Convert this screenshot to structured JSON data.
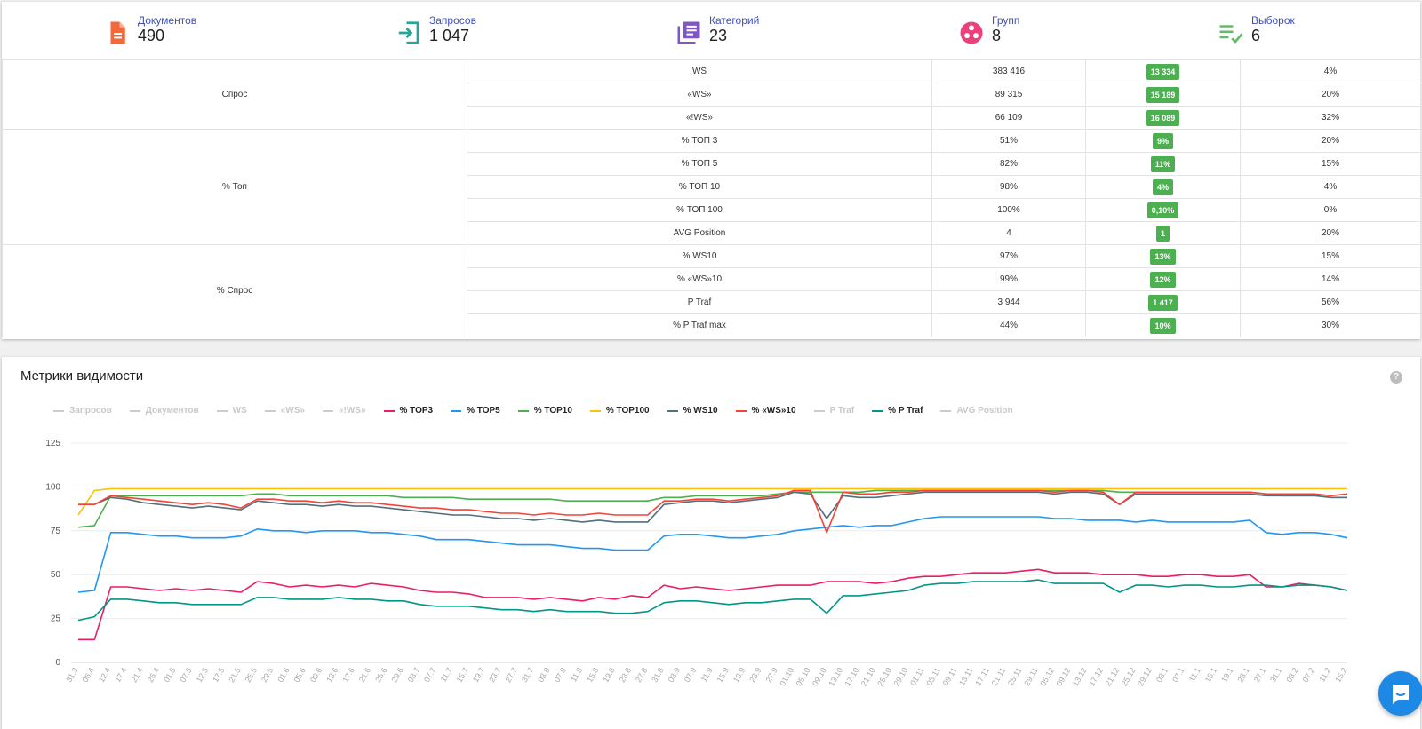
{
  "stats": [
    {
      "label": "Документов",
      "value": "490",
      "icon": "document-icon",
      "color": "#f4693c"
    },
    {
      "label": "Запросов",
      "value": "1 047",
      "icon": "login-arrow-icon",
      "color": "#26a69a"
    },
    {
      "label": "Категорий",
      "value": "23",
      "icon": "library-icon",
      "color": "#7e57c2"
    },
    {
      "label": "Групп",
      "value": "8",
      "icon": "group-circles-icon",
      "color": "#ec407a"
    },
    {
      "label": "Выборок",
      "value": "6",
      "icon": "checklist-icon",
      "color": "#66bb6a"
    }
  ],
  "table": {
    "groups": [
      {
        "name": "Спрос",
        "rows": [
          {
            "metric": "WS",
            "value": "383 416",
            "delta": "13 334",
            "pct": "4%"
          },
          {
            "metric": "«WS»",
            "value": "89 315",
            "delta": "15 189",
            "pct": "20%"
          },
          {
            "metric": "«!WS»",
            "value": "66 109",
            "delta": "16 089",
            "pct": "32%"
          }
        ]
      },
      {
        "name": "% Топ",
        "rows": [
          {
            "metric": "% ТОП 3",
            "value": "51%",
            "delta": "9%",
            "pct": "20%"
          },
          {
            "metric": "% ТОП 5",
            "value": "82%",
            "delta": "11%",
            "pct": "15%"
          },
          {
            "metric": "% ТОП 10",
            "value": "98%",
            "delta": "4%",
            "pct": "4%"
          },
          {
            "metric": "% ТОП 100",
            "value": "100%",
            "delta": "0,10%",
            "pct": "0%"
          },
          {
            "metric": "AVG Position",
            "value": "4",
            "delta": "1",
            "pct": "20%"
          }
        ]
      },
      {
        "name": "% Спрос",
        "rows": [
          {
            "metric": "% WS10",
            "value": "97%",
            "delta": "13%",
            "pct": "15%"
          },
          {
            "metric": "% «WS»10",
            "value": "99%",
            "delta": "12%",
            "pct": "14%"
          },
          {
            "metric": "P Traf",
            "value": "3 944",
            "delta": "1 417",
            "pct": "56%"
          },
          {
            "metric": "% P Traf max",
            "value": "44%",
            "delta": "10%",
            "pct": "30%"
          }
        ]
      }
    ]
  },
  "chart": {
    "title": "Метрики видимости",
    "help": "?",
    "legend": [
      {
        "name": "Запросов",
        "color": "#cccccc",
        "active": false
      },
      {
        "name": "Документов",
        "color": "#cccccc",
        "active": false
      },
      {
        "name": "WS",
        "color": "#cccccc",
        "active": false
      },
      {
        "name": "«WS»",
        "color": "#cccccc",
        "active": false
      },
      {
        "name": "«!WS»",
        "color": "#cccccc",
        "active": false
      },
      {
        "name": "% TOP3",
        "color": "#e91e63",
        "active": true
      },
      {
        "name": "% TOP5",
        "color": "#2196f3",
        "active": true
      },
      {
        "name": "% TOP10",
        "color": "#4caf50",
        "active": true
      },
      {
        "name": "% TOP100",
        "color": "#ffc107",
        "active": true
      },
      {
        "name": "% WS10",
        "color": "#546e7a",
        "active": true
      },
      {
        "name": "% «WS»10",
        "color": "#f44336",
        "active": true
      },
      {
        "name": "P Traf",
        "color": "#cccccc",
        "active": false
      },
      {
        "name": "% P Traf",
        "color": "#009688",
        "active": true
      },
      {
        "name": "AVG Position",
        "color": "#cccccc",
        "active": false
      }
    ]
  },
  "chart_data": {
    "type": "line",
    "yticks": [
      0,
      25,
      50,
      75,
      100,
      125
    ],
    "ylim": [
      0,
      125
    ],
    "grid": true,
    "legend_position": "top",
    "x": [
      "31.3",
      "06.4",
      "12.4",
      "17.4",
      "21.4",
      "26.4",
      "01.5",
      "07.5",
      "12.5",
      "17.5",
      "21.5",
      "25.5",
      "29.5",
      "01.6",
      "05.6",
      "09.6",
      "13.6",
      "17.6",
      "21.6",
      "25.6",
      "29.6",
      "03.7",
      "07.7",
      "11.7",
      "15.7",
      "19.7",
      "23.7",
      "27.7",
      "31.7",
      "03.8",
      "07.8",
      "11.8",
      "15.8",
      "19.8",
      "23.8",
      "27.8",
      "31.8",
      "03.9",
      "07.9",
      "11.9",
      "15.9",
      "19.9",
      "23.9",
      "27.9",
      "01.10",
      "05.10",
      "09.10",
      "13.10",
      "17.10",
      "21.10",
      "25.10",
      "29.10",
      "01.11",
      "05.11",
      "09.11",
      "13.11",
      "17.11",
      "21.11",
      "25.11",
      "29.11",
      "05.12",
      "09.12",
      "13.12",
      "17.12",
      "21.12",
      "25.12",
      "29.12",
      "03.1",
      "07.1",
      "11.1",
      "15.1",
      "19.1",
      "23.1",
      "27.1",
      "31.1",
      "03.2",
      "07.2",
      "11.2",
      "15.2"
    ],
    "series": [
      {
        "name": "% TOP3",
        "color": "#e91e63",
        "values": [
          13,
          13,
          43,
          43,
          42,
          41,
          42,
          41,
          42,
          41,
          40,
          46,
          45,
          43,
          44,
          43,
          44,
          43,
          45,
          44,
          43,
          41,
          40,
          40,
          39,
          37,
          37,
          37,
          36,
          37,
          36,
          35,
          37,
          36,
          38,
          37,
          44,
          42,
          43,
          42,
          41,
          42,
          43,
          44,
          44,
          44,
          46,
          46,
          46,
          45,
          46,
          48,
          49,
          49,
          50,
          51,
          51,
          51,
          52,
          53,
          51,
          51,
          51,
          50,
          50,
          50,
          49,
          49,
          50,
          50,
          49,
          49,
          50,
          43,
          43,
          45,
          44,
          43,
          41
        ]
      },
      {
        "name": "% TOP5",
        "color": "#2196f3",
        "values": [
          40,
          41,
          74,
          74,
          73,
          72,
          72,
          71,
          71,
          71,
          72,
          76,
          75,
          75,
          74,
          75,
          75,
          75,
          74,
          74,
          73,
          72,
          70,
          70,
          70,
          69,
          68,
          67,
          67,
          67,
          66,
          65,
          65,
          64,
          64,
          64,
          72,
          73,
          73,
          72,
          71,
          71,
          72,
          73,
          75,
          76,
          77,
          78,
          77,
          78,
          78,
          80,
          82,
          83,
          83,
          83,
          83,
          83,
          83,
          83,
          82,
          82,
          81,
          81,
          81,
          80,
          81,
          80,
          80,
          80,
          80,
          80,
          81,
          74,
          73,
          74,
          74,
          73,
          71
        ]
      },
      {
        "name": "% TOP10",
        "color": "#4caf50",
        "values": [
          77,
          78,
          95,
          95,
          95,
          95,
          95,
          95,
          95,
          95,
          95,
          96,
          96,
          95,
          95,
          95,
          95,
          95,
          95,
          95,
          94,
          94,
          94,
          94,
          93,
          93,
          93,
          93,
          93,
          93,
          92,
          92,
          92,
          92,
          92,
          92,
          94,
          94,
          95,
          95,
          95,
          95,
          95,
          96,
          97,
          97,
          97,
          97,
          97,
          98,
          98,
          98,
          98,
          98,
          98,
          98,
          98,
          98,
          98,
          98,
          98,
          98,
          98,
          98,
          97,
          97,
          97,
          97,
          97,
          97,
          97,
          97,
          97,
          96,
          95,
          95,
          95,
          94,
          94
        ]
      },
      {
        "name": "% TOP100",
        "color": "#ffc107",
        "values": [
          84,
          98,
          99,
          99,
          99,
          99,
          99,
          99,
          99,
          99,
          99,
          99,
          99,
          99,
          99,
          99,
          99,
          99,
          99,
          99,
          99,
          99,
          99,
          99,
          99,
          99,
          99,
          99,
          99,
          99,
          99,
          99,
          99,
          99,
          99,
          99,
          99,
          99,
          99,
          99,
          99,
          99,
          99,
          99,
          99,
          99,
          99,
          99,
          99,
          99,
          99,
          99,
          99,
          99,
          99,
          99,
          99,
          99,
          99,
          99,
          99,
          99,
          99,
          99,
          99,
          99,
          99,
          99,
          99,
          99,
          99,
          99,
          99,
          99,
          99,
          99,
          99,
          99,
          99
        ]
      },
      {
        "name": "% WS10",
        "color": "#546e7a",
        "values": [
          90,
          90,
          94,
          93,
          91,
          90,
          89,
          88,
          89,
          88,
          87,
          92,
          91,
          90,
          90,
          89,
          90,
          89,
          89,
          88,
          87,
          86,
          85,
          84,
          84,
          83,
          82,
          82,
          81,
          82,
          81,
          80,
          81,
          80,
          80,
          80,
          90,
          91,
          92,
          92,
          91,
          92,
          93,
          94,
          97,
          96,
          82,
          95,
          94,
          94,
          95,
          96,
          97,
          97,
          97,
          97,
          97,
          97,
          97,
          97,
          96,
          97,
          97,
          96,
          90,
          96,
          96,
          96,
          96,
          96,
          96,
          96,
          96,
          95,
          95,
          95,
          95,
          94,
          94
        ]
      },
      {
        "name": "% «WS»10",
        "color": "#f44336",
        "values": [
          90,
          90,
          95,
          94,
          93,
          92,
          91,
          90,
          91,
          90,
          88,
          93,
          93,
          92,
          92,
          91,
          92,
          91,
          91,
          90,
          89,
          88,
          88,
          87,
          87,
          86,
          85,
          85,
          84,
          85,
          84,
          84,
          85,
          84,
          84,
          84,
          92,
          92,
          93,
          93,
          92,
          93,
          94,
          95,
          98,
          98,
          74,
          97,
          96,
          96,
          97,
          97,
          98,
          98,
          98,
          98,
          98,
          98,
          98,
          98,
          97,
          98,
          98,
          97,
          90,
          97,
          97,
          97,
          97,
          97,
          97,
          97,
          97,
          96,
          96,
          96,
          96,
          95,
          96
        ]
      },
      {
        "name": "% P Traf",
        "color": "#009688",
        "values": [
          24,
          26,
          36,
          36,
          35,
          34,
          34,
          33,
          33,
          33,
          33,
          37,
          37,
          36,
          36,
          36,
          37,
          36,
          36,
          35,
          35,
          33,
          32,
          32,
          32,
          31,
          30,
          30,
          29,
          30,
          29,
          29,
          29,
          28,
          28,
          29,
          34,
          35,
          35,
          34,
          33,
          34,
          34,
          35,
          36,
          36,
          28,
          38,
          38,
          39,
          40,
          41,
          44,
          45,
          45,
          46,
          46,
          46,
          46,
          47,
          45,
          45,
          45,
          45,
          40,
          44,
          44,
          43,
          44,
          44,
          43,
          43,
          44,
          44,
          43,
          44,
          44,
          43,
          41
        ]
      }
    ]
  }
}
